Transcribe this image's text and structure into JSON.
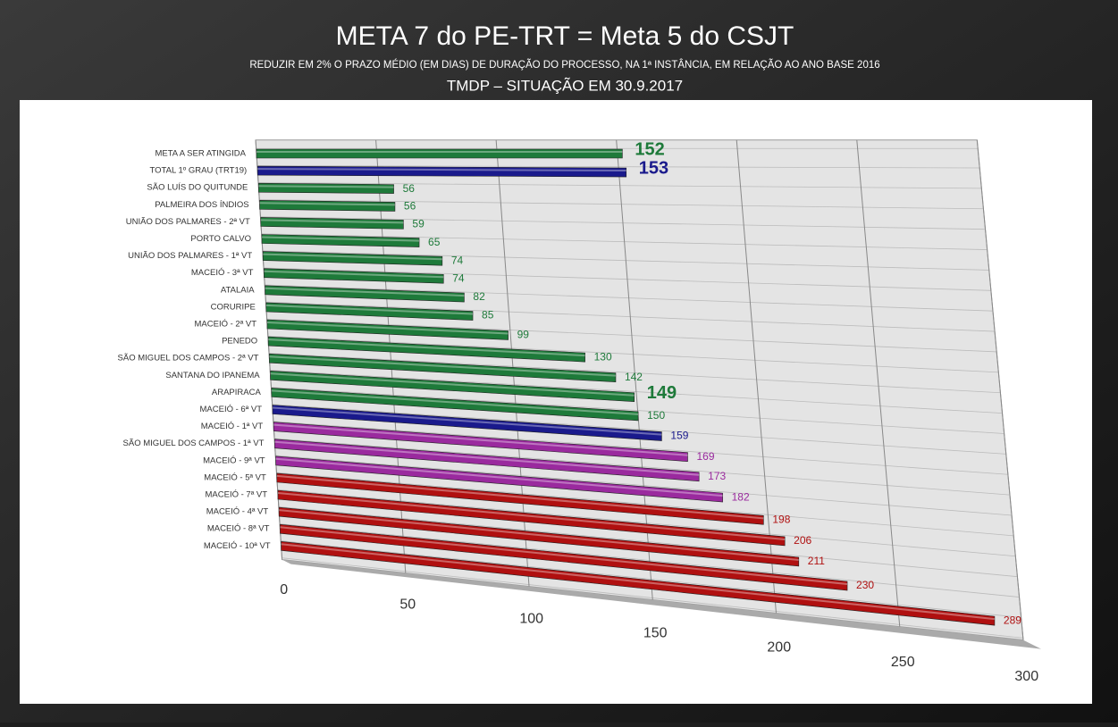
{
  "chart_data": {
    "type": "bar",
    "orientation": "horizontal",
    "title": "META 7 do PE-TRT = Meta 5 do CSJT",
    "subtitle": "REDUZIR EM 2% O PRAZO MÉDIO (EM DIAS) DE DURAÇÃO DO PROCESSO, NA 1ª INSTÂNCIA, EM RELAÇÃO AO ANO BASE 2016",
    "subtitle2": "TMDP – SITUAÇÃO EM 30.9.2017",
    "categories": [
      "META A SER ATINGIDA",
      "TOTAL 1º GRAU (TRT19)",
      "SÃO LUÍS DO QUITUNDE",
      "PALMEIRA DOS ÍNDIOS",
      "UNIÃO DOS PALMARES - 2ª VT",
      "PORTO CALVO",
      "UNIÃO DOS PALMARES - 1ª VT",
      "MACEIÓ - 3ª VT",
      "ATALAIA",
      "CORURIPE",
      "MACEIÓ - 2ª VT",
      "PENEDO",
      "SÃO MIGUEL DOS CAMPOS - 2ª VT",
      "SANTANA DO IPANEMA",
      "ARAPIRACA",
      "MACEIÓ - 6ª VT",
      "MACEIÓ - 1ª VT",
      "SÃO MIGUEL DOS CAMPOS - 1ª VT",
      "MACEIÓ - 9ª VT",
      "MACEIÓ - 5ª VT",
      "MACEIÓ - 7ª VT",
      "MACEIÓ - 4ª VT",
      "MACEIÓ - 8ª VT",
      "MACEIÓ - 10ª VT"
    ],
    "values": [
      152,
      153,
      56,
      56,
      59,
      65,
      74,
      74,
      82,
      85,
      99,
      130,
      142,
      149,
      150,
      159,
      169,
      173,
      182,
      198,
      206,
      211,
      230,
      289
    ],
    "colors": [
      "#1e7a3a",
      "#1a1a8c",
      "#1e7a3a",
      "#1e7a3a",
      "#1e7a3a",
      "#1e7a3a",
      "#1e7a3a",
      "#1e7a3a",
      "#1e7a3a",
      "#1e7a3a",
      "#1e7a3a",
      "#1e7a3a",
      "#1e7a3a",
      "#1e7a3a",
      "#1e7a3a",
      "#1a1a8c",
      "#9a2a9e",
      "#9a2a9e",
      "#9a2a9e",
      "#b01010",
      "#b01010",
      "#b01010",
      "#b01010",
      "#b01010"
    ],
    "emphasis": [
      true,
      true,
      false,
      false,
      false,
      false,
      false,
      false,
      false,
      false,
      false,
      false,
      false,
      true,
      false,
      false,
      false,
      false,
      false,
      false,
      false,
      false,
      false,
      false
    ],
    "xlim": [
      0,
      300
    ],
    "xticks": [
      0,
      50,
      100,
      150,
      200,
      250,
      300
    ],
    "grid": true
  }
}
